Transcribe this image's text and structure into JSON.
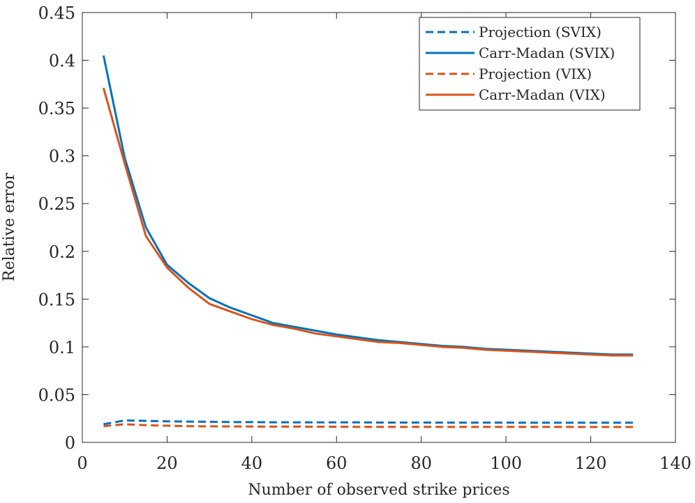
{
  "chart_data": {
    "type": "line",
    "title": "",
    "xlabel": "Number of observed strike prices",
    "ylabel": "Relative error",
    "xlim": [
      0,
      140
    ],
    "ylim": [
      0,
      0.45
    ],
    "xticks": [
      0,
      20,
      40,
      60,
      80,
      100,
      120,
      140
    ],
    "xtick_labels": [
      "0",
      "20",
      "40",
      "60",
      "80",
      "100",
      "120",
      "140"
    ],
    "yticks": [
      0,
      0.05,
      0.1,
      0.15,
      0.2,
      0.25,
      0.3,
      0.35,
      0.4,
      0.45
    ],
    "ytick_labels": [
      "0",
      "0.05",
      "0.1",
      "0.15",
      "0.2",
      "0.25",
      "0.3",
      "0.35",
      "0.4",
      "0.45"
    ],
    "grid": false,
    "legend_position": "top-right",
    "x": [
      5,
      10,
      15,
      20,
      25,
      30,
      35,
      40,
      45,
      50,
      55,
      60,
      65,
      70,
      75,
      80,
      85,
      90,
      95,
      100,
      105,
      110,
      115,
      120,
      125,
      130
    ],
    "series": [
      {
        "name": "Projection (SVIX)",
        "color": "#0072BD",
        "style": "dashed",
        "values": [
          0.019,
          0.023,
          0.0225,
          0.022,
          0.0218,
          0.0215,
          0.0213,
          0.0212,
          0.0211,
          0.021,
          0.021,
          0.0209,
          0.0209,
          0.0208,
          0.0208,
          0.0208,
          0.0207,
          0.0207,
          0.0207,
          0.0207,
          0.0206,
          0.0206,
          0.0206,
          0.0206,
          0.0206,
          0.0206
        ]
      },
      {
        "name": "Carr-Madan (SVIX)",
        "color": "#0072BD",
        "style": "solid",
        "values": [
          0.405,
          0.298,
          0.225,
          0.186,
          0.167,
          0.151,
          0.141,
          0.133,
          0.125,
          0.121,
          0.117,
          0.113,
          0.11,
          0.107,
          0.105,
          0.103,
          0.101,
          0.1,
          0.098,
          0.097,
          0.096,
          0.095,
          0.094,
          0.093,
          0.092,
          0.092
        ]
      },
      {
        "name": "Projection (VIX)",
        "color": "#D95319",
        "style": "dashed",
        "values": [
          0.017,
          0.019,
          0.018,
          0.0175,
          0.017,
          0.0168,
          0.0167,
          0.0166,
          0.0165,
          0.0165,
          0.0164,
          0.0164,
          0.0163,
          0.0163,
          0.0163,
          0.0163,
          0.0162,
          0.0162,
          0.0162,
          0.0162,
          0.0162,
          0.0162,
          0.0162,
          0.0161,
          0.0161,
          0.0161
        ]
      },
      {
        "name": "Carr-Madan (VIX)",
        "color": "#D95319",
        "style": "solid",
        "values": [
          0.371,
          0.292,
          0.216,
          0.183,
          0.162,
          0.145,
          0.137,
          0.129,
          0.123,
          0.119,
          0.114,
          0.111,
          0.108,
          0.105,
          0.104,
          0.102,
          0.1,
          0.099,
          0.097,
          0.096,
          0.095,
          0.094,
          0.093,
          0.092,
          0.091,
          0.091
        ]
      }
    ]
  }
}
